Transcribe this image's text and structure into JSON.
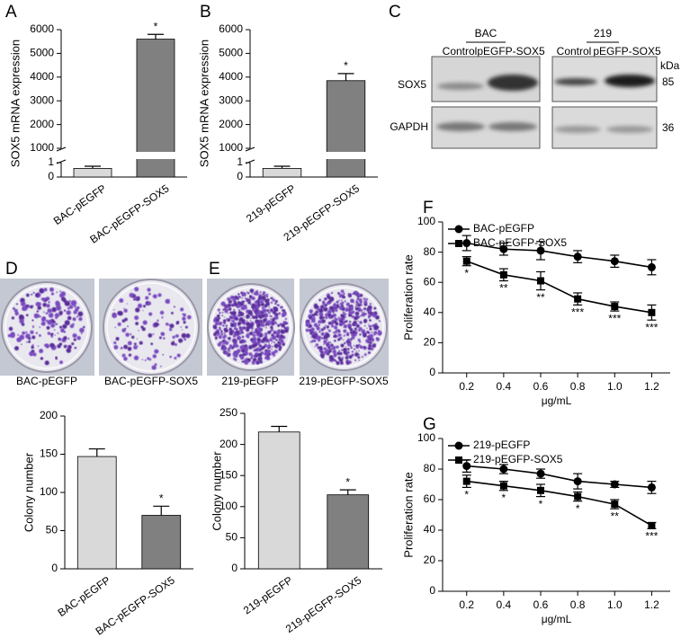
{
  "panels": [
    "A",
    "B",
    "C",
    "D",
    "E",
    "F",
    "G"
  ],
  "blot": {
    "groups": [
      "BAC",
      "219"
    ],
    "lanes": [
      "Control",
      "pEGFP-SOX5",
      "Control",
      "pEGFP-SOX5"
    ],
    "proteins": [
      "SOX5",
      "GAPDH"
    ],
    "unit": "kDa",
    "sizes": [
      "85",
      "36"
    ]
  },
  "colony_images": {
    "captions": [
      "BAC-pEGFP",
      "BAC-pEGFP-SOX5",
      "219-pEGFP",
      "219-pEGFP-SOX5"
    ]
  },
  "chart_data": [
    {
      "type": "bar",
      "ylabel": "SOX5 mRNA expression",
      "categories": [
        "BAC-pEGFP",
        "BAC-pEGFP-SOX5"
      ],
      "values": [
        0.6,
        5600
      ],
      "errors": [
        0.15,
        200
      ],
      "annotations": [
        null,
        "*"
      ],
      "colors": [
        "#d9d9d9",
        "#808080"
      ],
      "ylim": [
        0,
        6000
      ],
      "ybreak": [
        1,
        1000
      ],
      "yticks": [
        0,
        1,
        1000,
        2000,
        3000,
        4000,
        5000,
        6000
      ]
    },
    {
      "type": "bar",
      "ylabel": "SOX5 mRNA expression",
      "categories": [
        "219-pEGFP",
        "219-pEGFP-SOX5"
      ],
      "values": [
        0.6,
        3850
      ],
      "errors": [
        0.15,
        300
      ],
      "annotations": [
        null,
        "*"
      ],
      "colors": [
        "#d9d9d9",
        "#808080"
      ],
      "ylim": [
        0,
        6000
      ],
      "ybreak": [
        1,
        1000
      ],
      "yticks": [
        0,
        1,
        1000,
        2000,
        3000,
        4000,
        5000,
        6000
      ]
    },
    {
      "type": "bar",
      "ylabel": "Colony  number",
      "categories": [
        "BAC-pEGFP",
        "BAC-pEGFP-SOX5"
      ],
      "values": [
        147,
        70
      ],
      "errors": [
        10,
        12
      ],
      "annotations": [
        null,
        "*"
      ],
      "colors": [
        "#d9d9d9",
        "#808080"
      ],
      "ylim": [
        0,
        200
      ],
      "yticks": [
        0,
        50,
        100,
        150,
        200
      ]
    },
    {
      "type": "bar",
      "ylabel": "Colony  number",
      "categories": [
        "219-pEGFP",
        "219-pEGFP-SOX5"
      ],
      "values": [
        220,
        119
      ],
      "errors": [
        9,
        8
      ],
      "annotations": [
        null,
        "*"
      ],
      "colors": [
        "#d9d9d9",
        "#808080"
      ],
      "ylim": [
        0,
        250
      ],
      "yticks": [
        0,
        50,
        100,
        150,
        200,
        250
      ]
    },
    {
      "type": "line",
      "xlabel": "μg/mL",
      "ylabel": "Proliferation rate",
      "legend": "top-left",
      "x": [
        0.2,
        0.4,
        0.6,
        0.8,
        1.0,
        1.2
      ],
      "xlim": [
        0.07,
        1.3
      ],
      "xticks": [
        0.2,
        0.4,
        0.6,
        0.8,
        {
          "value": 1.0,
          "label": "1.0"
        },
        1.2
      ],
      "ylim": [
        0,
        100
      ],
      "yticks": [
        0,
        20,
        40,
        60,
        80,
        100
      ],
      "series": [
        {
          "name": "BAC-pEGFP",
          "color": "#000000",
          "marker": "circle",
          "values": [
            86,
            82,
            81,
            77,
            74,
            70
          ],
          "errors": [
            5,
            4,
            6,
            4,
            4,
            5
          ]
        },
        {
          "name": "BAC-pEGFP-SOX5",
          "color": "#000000",
          "marker": "square",
          "values": [
            74,
            65,
            61,
            49,
            44,
            40
          ],
          "errors": [
            3,
            4,
            6,
            4,
            3,
            5
          ],
          "annotations": [
            "*",
            "**",
            "**",
            "***",
            "***",
            "***"
          ]
        }
      ]
    },
    {
      "type": "line",
      "xlabel": "μg/mL",
      "ylabel": "Proliferation rate",
      "legend": "top-left",
      "x": [
        0.2,
        0.4,
        0.6,
        0.8,
        1.0,
        1.2
      ],
      "xlim": [
        0.07,
        1.3
      ],
      "xticks": [
        0.2,
        0.4,
        0.6,
        0.8,
        {
          "value": 1.0,
          "label": "1.0"
        },
        1.2
      ],
      "ylim": [
        0,
        100
      ],
      "yticks": [
        0,
        20,
        40,
        60,
        80,
        100
      ],
      "series": [
        {
          "name": "219-pEGFP",
          "color": "#000000",
          "marker": "circle",
          "values": [
            82,
            80,
            77,
            72,
            70,
            68
          ],
          "errors": [
            4,
            3,
            3,
            5,
            2,
            4
          ]
        },
        {
          "name": "219-pEGFP-SOX5",
          "color": "#000000",
          "marker": "square",
          "values": [
            72,
            69,
            66,
            62,
            57,
            43
          ],
          "errors": [
            4,
            3,
            4,
            3,
            3,
            2
          ],
          "annotations": [
            "*",
            "*",
            "*",
            "*",
            "**",
            "***"
          ]
        }
      ]
    }
  ]
}
